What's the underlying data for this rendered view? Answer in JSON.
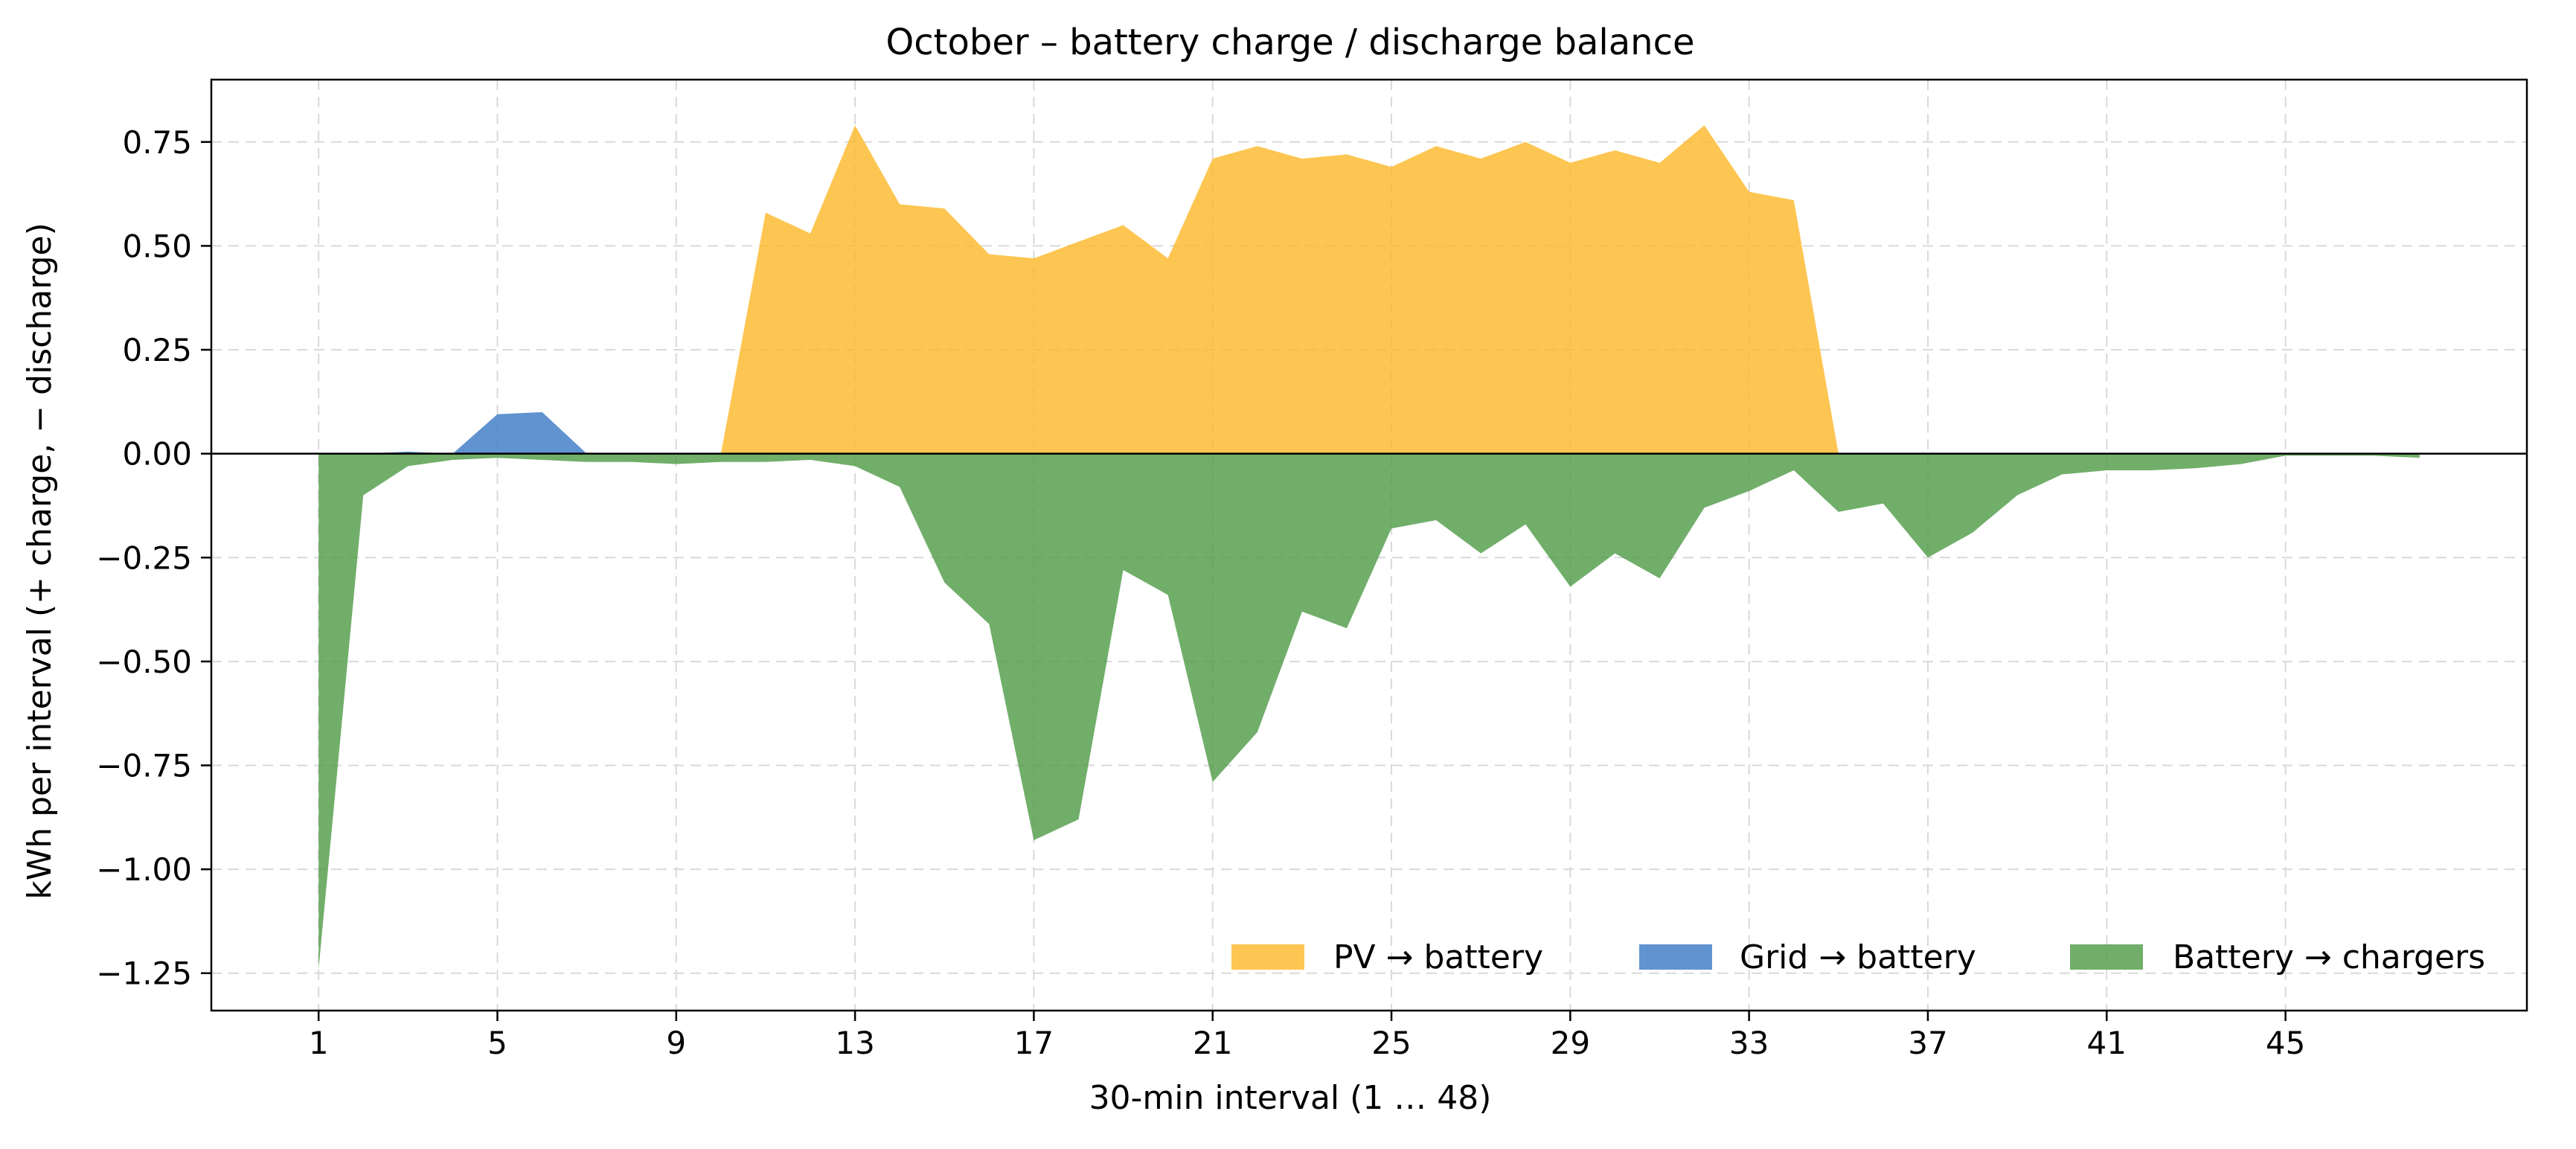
{
  "chart_data": {
    "type": "area",
    "title": "October – battery charge / discharge balance",
    "xlabel": "30-min interval (1 … 48)",
    "ylabel": "kWh per interval (+ charge, − discharge)",
    "xlim": [
      -1.4,
      50.4
    ],
    "ylim": [
      -1.34,
      0.9
    ],
    "xticks": [
      1,
      5,
      9,
      13,
      17,
      21,
      25,
      29,
      33,
      37,
      41,
      45
    ],
    "xtick_labels": [
      "1",
      "5",
      "9",
      "13",
      "17",
      "21",
      "25",
      "29",
      "33",
      "37",
      "41",
      "45"
    ],
    "yticks": [
      -1.25,
      -1.0,
      -0.75,
      -0.5,
      -0.25,
      0.0,
      0.25,
      0.5,
      0.75
    ],
    "ytick_labels": [
      "−1.25",
      "−1.00",
      "−0.75",
      "−0.50",
      "−0.25",
      "0.00",
      "0.25",
      "0.50",
      "0.75"
    ],
    "grid": true,
    "zero_line": true,
    "legend_placement": "lower-right",
    "x": [
      1,
      2,
      3,
      4,
      5,
      6,
      7,
      8,
      9,
      10,
      11,
      12,
      13,
      14,
      15,
      16,
      17,
      18,
      19,
      20,
      21,
      22,
      23,
      24,
      25,
      26,
      27,
      28,
      29,
      30,
      31,
      32,
      33,
      34,
      35,
      36,
      37,
      38,
      39,
      40,
      41,
      42,
      43,
      44,
      45,
      46,
      47,
      48
    ],
    "series": [
      {
        "name": "PV → battery",
        "color": "#fdb827",
        "values": [
          0,
          0,
          0,
          0,
          0,
          0,
          0,
          0,
          0,
          0,
          0.58,
          0.53,
          0.79,
          0.6,
          0.59,
          0.48,
          0.47,
          0.51,
          0.55,
          0.47,
          0.71,
          0.74,
          0.71,
          0.72,
          0.69,
          0.74,
          0.71,
          0.75,
          0.7,
          0.73,
          0.7,
          0.79,
          0.63,
          0.61,
          0,
          0,
          0,
          0,
          0,
          0,
          0,
          0,
          0,
          0,
          0,
          0,
          0,
          0
        ]
      },
      {
        "name": "Grid → battery",
        "color": "#3a78c4",
        "values": [
          0,
          0,
          0.005,
          0,
          0.095,
          0.1,
          0,
          0,
          0,
          0,
          0,
          0,
          0,
          0,
          0,
          0,
          0,
          0,
          0,
          0,
          0,
          0,
          0,
          0,
          0,
          0,
          0,
          0,
          0,
          0,
          0,
          0,
          0,
          0,
          0,
          0,
          0,
          0,
          0,
          0,
          0,
          0,
          0,
          0,
          0,
          0,
          0,
          0
        ]
      },
      {
        "name": "Battery → chargers",
        "color": "#4e9a45",
        "values": [
          -1.24,
          -0.1,
          -0.03,
          -0.015,
          -0.01,
          -0.015,
          -0.02,
          -0.02,
          -0.025,
          -0.02,
          -0.02,
          -0.015,
          -0.03,
          -0.08,
          -0.31,
          -0.41,
          -0.93,
          -0.88,
          -0.28,
          -0.34,
          -0.79,
          -0.67,
          -0.38,
          -0.42,
          -0.18,
          -0.16,
          -0.24,
          -0.17,
          -0.32,
          -0.24,
          -0.3,
          -0.13,
          -0.09,
          -0.04,
          -0.14,
          -0.12,
          -0.25,
          -0.19,
          -0.1,
          -0.05,
          -0.04,
          -0.04,
          -0.035,
          -0.025,
          -0.005,
          -0.005,
          -0.005,
          -0.01
        ]
      }
    ]
  }
}
